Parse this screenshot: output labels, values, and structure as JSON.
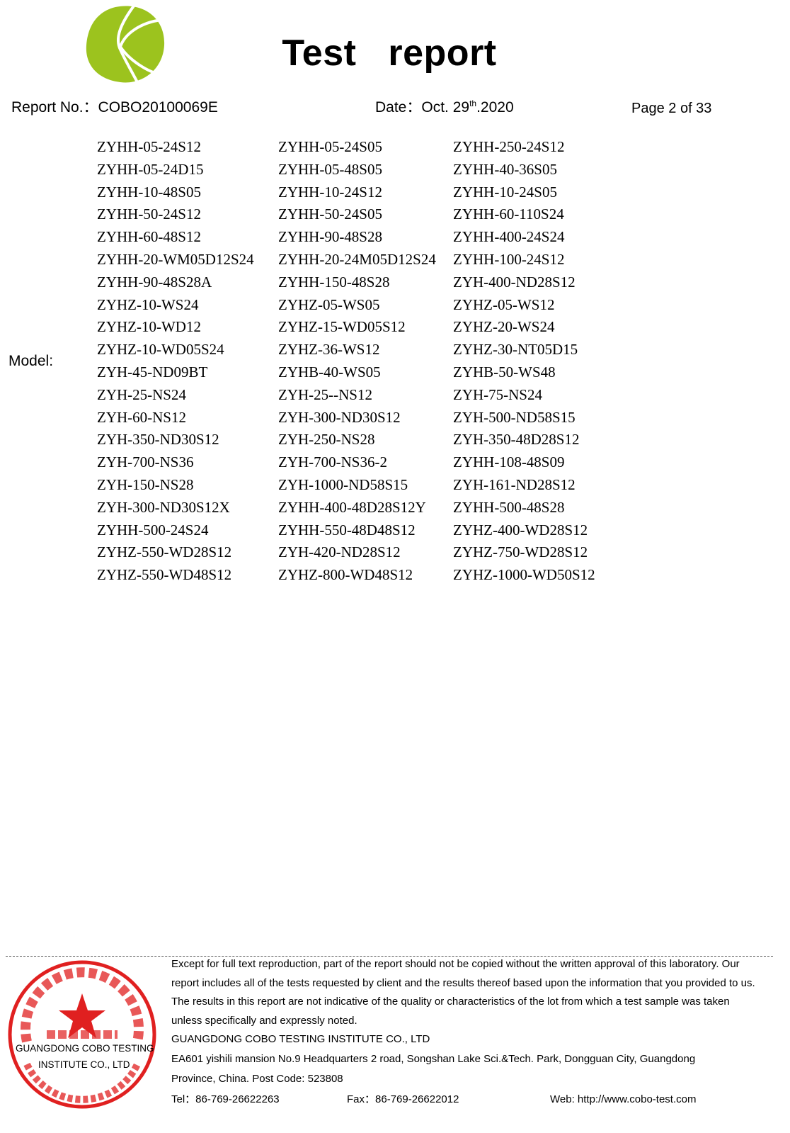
{
  "header": {
    "title": "Test   report",
    "report_no": "Report No.：COBO20100069E",
    "date_prefix": "Date：Oct. 29",
    "date_sup": "th",
    "date_suffix": ".2020",
    "page": "Page 2 of 33"
  },
  "logo": {
    "name": "cobo-logo",
    "color": "#9cc31e"
  },
  "model_label": "Model:",
  "models": [
    [
      "ZYHH-05-24S12",
      "ZYHH-05-24S05",
      "ZYHH-250-24S12"
    ],
    [
      "ZYHH-05-24D15",
      "ZYHH-05-48S05",
      "ZYHH-40-36S05"
    ],
    [
      "ZYHH-10-48S05",
      "ZYHH-10-24S12",
      "ZYHH-10-24S05"
    ],
    [
      "ZYHH-50-24S12",
      "ZYHH-50-24S05",
      "ZYHH-60-110S24"
    ],
    [
      "ZYHH-60-48S12",
      "ZYHH-90-48S28",
      "ZYHH-400-24S24"
    ],
    [
      "ZYHH-20-WM05D12S24",
      "ZYHH-20-24M05D12S24",
      "ZYHH-100-24S12"
    ],
    [
      "ZYHH-90-48S28A",
      "ZYHH-150-48S28",
      "ZYH-400-ND28S12"
    ],
    [
      "ZYHZ-10-WS24",
      "ZYHZ-05-WS05",
      "ZYHZ-05-WS12"
    ],
    [
      "ZYHZ-10-WD12",
      "ZYHZ-15-WD05S12",
      "ZYHZ-20-WS24"
    ],
    [
      "ZYHZ-10-WD05S24",
      "ZYHZ-36-WS12",
      "ZYHZ-30-NT05D15"
    ],
    [
      "ZYH-45-ND09BT",
      "ZYHB-40-WS05",
      "ZYHB-50-WS48"
    ],
    [
      "ZYH-25-NS24",
      "ZYH-25--NS12",
      "ZYH-75-NS24"
    ],
    [
      "ZYH-60-NS12",
      "ZYH-300-ND30S12",
      "ZYH-500-ND58S15"
    ],
    [
      "ZYH-350-ND30S12",
      "ZYH-250-NS28",
      "ZYH-350-48D28S12"
    ],
    [
      "ZYH-700-NS36",
      "ZYH-700-NS36-2",
      "ZYHH-108-48S09"
    ],
    [
      "ZYH-150-NS28",
      "ZYH-1000-ND58S15",
      "ZYH-161-ND28S12"
    ],
    [
      "ZYH-300-ND30S12X",
      "ZYHH-400-48D28S12Y",
      "ZYHH-500-48S28"
    ],
    [
      "ZYHH-500-24S24",
      "ZYHH-550-48D48S12",
      "ZYHZ-400-WD28S12"
    ],
    [
      "ZYHZ-550-WD28S12",
      "ZYH-420-ND28S12",
      "ZYHZ-750-WD28S12"
    ],
    [
      "ZYHZ-550-WD48S12",
      "ZYHZ-800-WD48S12",
      "ZYHZ-1000-WD50S12"
    ]
  ],
  "stamp": {
    "text_cn_ring": "广东科博检测研究院有限公司",
    "text_cn_center": "检验检测专用章",
    "text_en_ring": "GUANGDONG COBO TESTING INSTITUTE CO.,LTD",
    "overlay_line1": "GUANGDONG COBO TESTING",
    "overlay_line2": "INSTITUTE CO., LTD",
    "color": "#e02020"
  },
  "footer": {
    "disclaimer": [
      "Except for full text reproduction, part of the report should not be copied without the written approval of this laboratory. Our",
      "report includes all of the tests requested by client and the results thereof based upon the information that you provided to us.",
      "The results in this report are not indicative of the quality or characteristics of the lot from which a test sample was taken",
      "unless specifically and expressly noted."
    ],
    "company": "GUANGDONG COBO TESTING INSTITUTE CO., LTD",
    "address_1": "EA601 yishili mansion No.9 Headquarters 2 road, Songshan Lake Sci.&Tech. Park, Dongguan City, Guangdong",
    "address_2": "Province, China. Post Code: 523808",
    "tel": "Tel：86-769-26622263",
    "fax": "Fax：86-769-26622012",
    "web": "Web: http://www.cobo-test.com"
  }
}
